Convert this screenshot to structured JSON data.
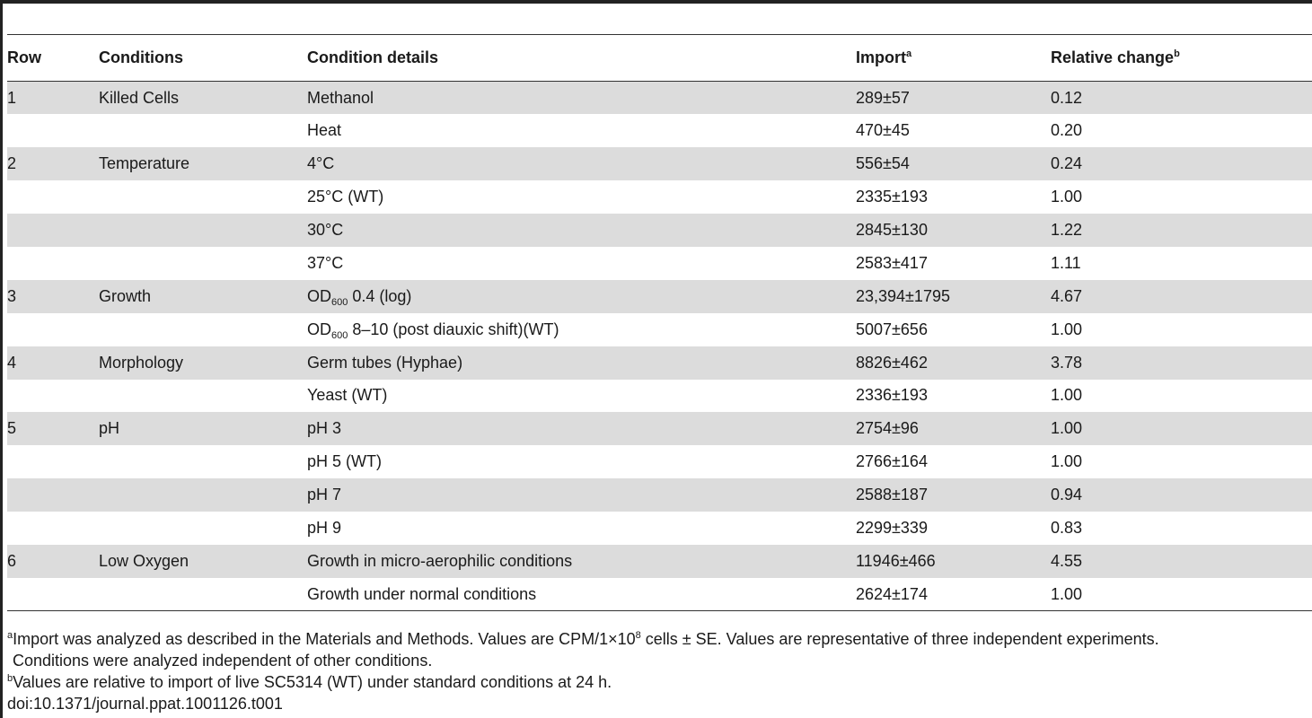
{
  "table": {
    "headers": {
      "row": "Row",
      "conditions": "Conditions",
      "condition_details": "Condition details",
      "import": "Import",
      "import_note": "a",
      "relative_change": "Relative change",
      "relative_change_note": "b"
    },
    "rows": [
      {
        "row": "1",
        "condition": "Killed Cells",
        "detail": "Methanol",
        "detail_sub": "",
        "detail_suffix": "",
        "import": "289±57",
        "relative": "0.12",
        "shaded": true
      },
      {
        "row": "",
        "condition": "",
        "detail": "Heat",
        "detail_sub": "",
        "detail_suffix": "",
        "import": "470±45",
        "relative": "0.20",
        "shaded": false
      },
      {
        "row": "2",
        "condition": "Temperature",
        "detail": "4°C",
        "detail_sub": "",
        "detail_suffix": "",
        "import": "556±54",
        "relative": "0.24",
        "shaded": true
      },
      {
        "row": "",
        "condition": "",
        "detail": "25°C (WT)",
        "detail_sub": "",
        "detail_suffix": "",
        "import": "2335±193",
        "relative": "1.00",
        "shaded": false
      },
      {
        "row": "",
        "condition": "",
        "detail": "30°C",
        "detail_sub": "",
        "detail_suffix": "",
        "import": "2845±130",
        "relative": "1.22",
        "shaded": true
      },
      {
        "row": "",
        "condition": "",
        "detail": "37°C",
        "detail_sub": "",
        "detail_suffix": "",
        "import": "2583±417",
        "relative": "1.11",
        "shaded": false
      },
      {
        "row": "3",
        "condition": "Growth",
        "detail": "OD",
        "detail_sub": "600",
        "detail_suffix": " 0.4 (log)",
        "import": "23,394±1795",
        "relative": "4.67",
        "shaded": true
      },
      {
        "row": "",
        "condition": "",
        "detail": "OD",
        "detail_sub": "600",
        "detail_suffix": " 8–10 (post diauxic shift)(WT)",
        "import": "5007±656",
        "relative": "1.00",
        "shaded": false
      },
      {
        "row": "4",
        "condition": "Morphology",
        "detail": "Germ tubes (Hyphae)",
        "detail_sub": "",
        "detail_suffix": "",
        "import": "8826±462",
        "relative": "3.78",
        "shaded": true
      },
      {
        "row": "",
        "condition": "",
        "detail": "Yeast (WT)",
        "detail_sub": "",
        "detail_suffix": "",
        "import": "2336±193",
        "relative": "1.00",
        "shaded": false
      },
      {
        "row": "5",
        "condition": "pH",
        "detail": "pH 3",
        "detail_sub": "",
        "detail_suffix": "",
        "import": "2754±96",
        "relative": "1.00",
        "shaded": true
      },
      {
        "row": "",
        "condition": "",
        "detail": "pH 5 (WT)",
        "detail_sub": "",
        "detail_suffix": "",
        "import": "2766±164",
        "relative": "1.00",
        "shaded": false
      },
      {
        "row": "",
        "condition": "",
        "detail": "pH 7",
        "detail_sub": "",
        "detail_suffix": "",
        "import": "2588±187",
        "relative": "0.94",
        "shaded": true
      },
      {
        "row": "",
        "condition": "",
        "detail": "pH 9",
        "detail_sub": "",
        "detail_suffix": "",
        "import": "2299±339",
        "relative": "0.83",
        "shaded": false
      },
      {
        "row": "6",
        "condition": "Low Oxygen",
        "detail": "Growth in micro-aerophilic conditions",
        "detail_sub": "",
        "detail_suffix": "",
        "import": "11946±466",
        "relative": "4.55",
        "shaded": true
      },
      {
        "row": "",
        "condition": "",
        "detail": "Growth under normal conditions",
        "detail_sub": "",
        "detail_suffix": "",
        "import": "2624±174",
        "relative": "1.00",
        "shaded": false
      }
    ]
  },
  "footnotes": {
    "a_marker": "a",
    "a_line1_before": "Import was analyzed as described in the Materials and Methods. Values are CPM/1×10",
    "a_line1_sup": "8",
    "a_line1_after": " cells ± SE. Values are representative of three independent experiments.",
    "a_line2": "Conditions were analyzed independent of other conditions.",
    "b_marker": "b",
    "b_text": "Values are relative to import of live SC5314 (WT) under standard conditions at 24 h.",
    "doi": "doi:10.1371/journal.ppat.1001126.t001"
  },
  "colors": {
    "shaded_row": "#dcdcdc",
    "rule": "#333333",
    "text": "#1a1a1a"
  }
}
